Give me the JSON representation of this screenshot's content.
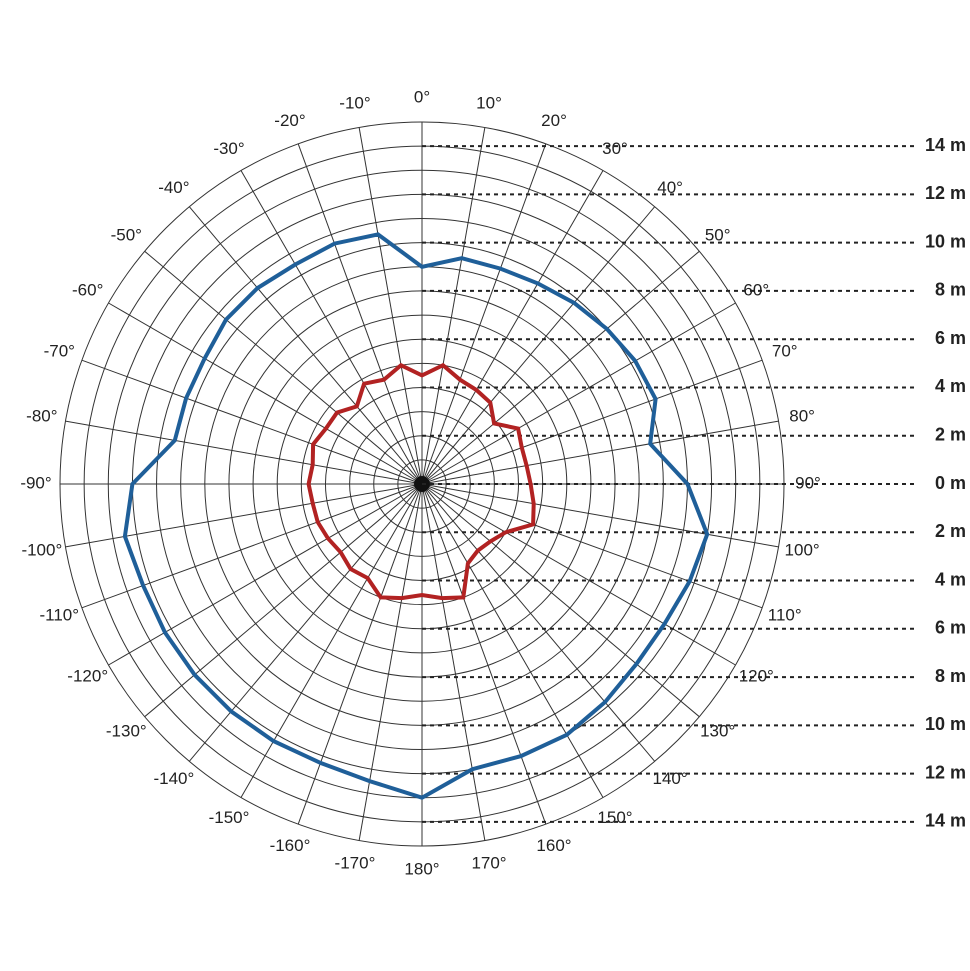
{
  "chart_data": {
    "type": "polar",
    "theta": [
      -170,
      -160,
      -150,
      -140,
      -130,
      -120,
      -110,
      -100,
      -90,
      -80,
      -70,
      -60,
      -50,
      -40,
      -30,
      -20,
      -10,
      0,
      10,
      20,
      30,
      40,
      50,
      60,
      70,
      80,
      90,
      100,
      110,
      120,
      130,
      140,
      150,
      160,
      170,
      180
    ],
    "series": [
      {
        "color": "#1f5f99",
        "values": [
          12.5,
          12.3,
          12.3,
          12.3,
          12.3,
          12.3,
          12.3,
          12.5,
          12.0,
          10.4,
          10.4,
          10.4,
          10.6,
          10.6,
          10.5,
          10.6,
          10.5,
          9.0,
          9.5,
          9.5,
          9.6,
          9.8,
          10.0,
          10.2,
          10.3,
          9.6,
          11.0,
          12.0,
          11.8,
          11.6,
          11.6,
          11.8,
          12.0,
          12.0,
          12.0,
          13.0
        ]
      },
      {
        "color": "#b22222",
        "values": [
          4.8,
          5.0,
          4.5,
          4.6,
          4.4,
          4.5,
          4.6,
          4.6,
          4.7,
          4.6,
          4.8,
          4.6,
          4.6,
          4.2,
          4.8,
          4.6,
          5.0,
          4.5,
          5.0,
          4.6,
          4.5,
          4.4,
          3.9,
          4.6,
          4.4,
          4.4,
          4.5,
          4.7,
          4.9,
          4.0,
          3.7,
          3.6,
          3.8,
          5.0,
          4.8,
          4.6
        ]
      }
    ],
    "rlim": [
      0,
      15
    ],
    "rticks": [
      1,
      2,
      3,
      4,
      5,
      6,
      7,
      8,
      9,
      10,
      11,
      12,
      13,
      14,
      15
    ],
    "thetaticks": [
      {
        "value": -170,
        "label": "-170°"
      },
      {
        "value": -160,
        "label": "-160°"
      },
      {
        "value": -150,
        "label": "-150°"
      },
      {
        "value": -140,
        "label": "-140°"
      },
      {
        "value": -130,
        "label": "-130°"
      },
      {
        "value": -120,
        "label": "-120°"
      },
      {
        "value": -110,
        "label": "-110°"
      },
      {
        "value": -100,
        "label": "-100°"
      },
      {
        "value": -90,
        "label": "-90°"
      },
      {
        "value": -80,
        "label": "-80°"
      },
      {
        "value": -70,
        "label": "-70°"
      },
      {
        "value": -60,
        "label": "-60°"
      },
      {
        "value": -50,
        "label": "-50°"
      },
      {
        "value": -40,
        "label": "-40°"
      },
      {
        "value": -30,
        "label": "-30°"
      },
      {
        "value": -20,
        "label": "-20°"
      },
      {
        "value": -10,
        "label": "-10°"
      },
      {
        "value": 0,
        "label": "0°"
      },
      {
        "value": 10,
        "label": "10°"
      },
      {
        "value": 20,
        "label": "20°"
      },
      {
        "value": 30,
        "label": "30°"
      },
      {
        "value": 40,
        "label": "40°"
      },
      {
        "value": 50,
        "label": "50°"
      },
      {
        "value": 60,
        "label": "60°"
      },
      {
        "value": 70,
        "label": "70°"
      },
      {
        "value": 80,
        "label": "80°"
      },
      {
        "value": 90,
        "label": "90°"
      },
      {
        "value": 100,
        "label": "100°"
      },
      {
        "value": 110,
        "label": "110°"
      },
      {
        "value": 120,
        "label": "120°"
      },
      {
        "value": 130,
        "label": "130°"
      },
      {
        "value": 140,
        "label": "140°"
      },
      {
        "value": 150,
        "label": "150°"
      },
      {
        "value": 160,
        "label": "160°"
      },
      {
        "value": 170,
        "label": "170°"
      },
      {
        "value": 180,
        "label": "180°"
      }
    ],
    "yticks": [
      {
        "value": 14,
        "label": "14 m"
      },
      {
        "value": 12,
        "label": "12 m"
      },
      {
        "value": 10,
        "label": "10 m"
      },
      {
        "value": 8,
        "label": "8 m"
      },
      {
        "value": 6,
        "label": "6 m"
      },
      {
        "value": 4,
        "label": "4 m"
      },
      {
        "value": 2,
        "label": "2 m"
      },
      {
        "value": 0,
        "label": "0 m"
      },
      {
        "value": -2,
        "label": "2 m"
      },
      {
        "value": -4,
        "label": "4 m"
      },
      {
        "value": -6,
        "label": "6 m"
      },
      {
        "value": -8,
        "label": "8 m"
      },
      {
        "value": -10,
        "label": "10 m"
      },
      {
        "value": -12,
        "label": "12 m"
      },
      {
        "value": -14,
        "label": "14 m"
      }
    ]
  }
}
